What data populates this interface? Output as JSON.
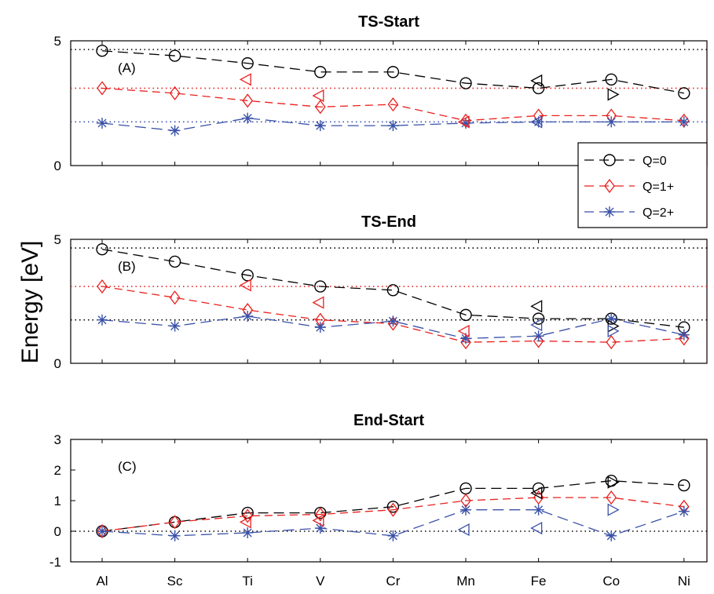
{
  "chart_data": {
    "type": "line",
    "ylabel": "Energy [eV]",
    "categories": [
      "Al",
      "Sc",
      "Ti",
      "V",
      "Cr",
      "Mn",
      "Fe",
      "Co",
      "Ni"
    ],
    "legend": {
      "placement": "right, between panels A and B",
      "entries": [
        {
          "label": "Q=0",
          "color": "#000000",
          "marker": "circle"
        },
        {
          "label": "Q=1+",
          "color": "#e8211f",
          "marker": "diamond"
        },
        {
          "label": "Q=2+",
          "color": "#3a52a8",
          "marker": "asterisk"
        }
      ]
    },
    "panels": [
      {
        "title": "TS-Start",
        "letter": "(A)",
        "ylim": [
          0,
          5
        ],
        "yticks": [
          "0",
          "5"
        ],
        "reference_lines": [
          {
            "y": 4.65,
            "color": "#000000"
          },
          {
            "y": 3.1,
            "color": "#e8211f"
          },
          {
            "y": 1.75,
            "color": "#3a52a8"
          }
        ],
        "series": [
          {
            "name": "Q=0",
            "color": "#000000",
            "marker": "circle",
            "values": [
              4.6,
              4.4,
              4.1,
              3.75,
              3.75,
              3.3,
              3.1,
              3.45,
              2.9
            ]
          },
          {
            "name": "Q=1+",
            "color": "#e8211f",
            "marker": "diamond",
            "values": [
              3.1,
              2.9,
              2.6,
              2.35,
              2.45,
              1.8,
              2.0,
              2.0,
              1.8
            ]
          },
          {
            "name": "Q=2+",
            "color": "#3a52a8",
            "marker": "asterisk",
            "values": [
              1.7,
              1.4,
              1.9,
              1.6,
              1.6,
              1.7,
              1.75,
              1.75,
              1.75
            ]
          }
        ],
        "extra_markers": [
          {
            "category": "Ti",
            "value": 3.45,
            "shape": "triangle-left",
            "color": "#e8211f"
          },
          {
            "category": "V",
            "value": 2.8,
            "shape": "triangle-left",
            "color": "#e8211f"
          },
          {
            "category": "Mn",
            "value": 1.75,
            "shape": "triangle-left",
            "color": "#e8211f"
          },
          {
            "category": "Fe",
            "value": 3.4,
            "shape": "triangle-left",
            "color": "#000000"
          },
          {
            "category": "Fe",
            "value": 1.75,
            "shape": "triangle-left",
            "color": "#3a52a8"
          },
          {
            "category": "Co",
            "value": 2.85,
            "shape": "triangle-right",
            "color": "#000000"
          }
        ]
      },
      {
        "title": "TS-End",
        "letter": "(B)",
        "ylim": [
          0,
          5
        ],
        "yticks": [
          "0",
          "5"
        ],
        "reference_lines": [
          {
            "y": 4.65,
            "color": "#000000"
          },
          {
            "y": 3.1,
            "color": "#e8211f"
          },
          {
            "y": 1.75,
            "color": "#000000"
          }
        ],
        "series": [
          {
            "name": "Q=0",
            "color": "#000000",
            "marker": "circle",
            "values": [
              4.6,
              4.1,
              3.55,
              3.1,
              2.95,
              1.95,
              1.8,
              1.8,
              1.45
            ]
          },
          {
            "name": "Q=1+",
            "color": "#e8211f",
            "marker": "diamond",
            "values": [
              3.1,
              2.65,
              2.15,
              1.75,
              1.6,
              0.85,
              0.9,
              0.85,
              1.0
            ]
          },
          {
            "name": "Q=2+",
            "color": "#3a52a8",
            "marker": "asterisk",
            "values": [
              1.75,
              1.5,
              1.9,
              1.45,
              1.7,
              1.0,
              1.1,
              1.8,
              1.15
            ]
          }
        ],
        "extra_markers": [
          {
            "category": "Ti",
            "value": 3.15,
            "shape": "triangle-left",
            "color": "#e8211f"
          },
          {
            "category": "V",
            "value": 2.45,
            "shape": "triangle-left",
            "color": "#e8211f"
          },
          {
            "category": "Mn",
            "value": 1.3,
            "shape": "triangle-left",
            "color": "#e8211f"
          },
          {
            "category": "Fe",
            "value": 2.3,
            "shape": "triangle-left",
            "color": "#000000"
          },
          {
            "category": "Fe",
            "value": 1.55,
            "shape": "triangle-left",
            "color": "#3a52a8"
          },
          {
            "category": "Co",
            "value": 1.5,
            "shape": "triangle-right",
            "color": "#000000"
          },
          {
            "category": "Co",
            "value": 1.3,
            "shape": "triangle-right",
            "color": "#3a52a8"
          }
        ]
      },
      {
        "title": "End-Start",
        "letter": "(C)",
        "ylim": [
          -1,
          3
        ],
        "yticks": [
          "-1",
          "0",
          "1",
          "2",
          "3"
        ],
        "reference_lines": [
          {
            "y": 0,
            "color": "#000000"
          }
        ],
        "series": [
          {
            "name": "Q=0",
            "color": "#000000",
            "marker": "circle",
            "values": [
              0,
              0.3,
              0.6,
              0.6,
              0.8,
              1.4,
              1.4,
              1.65,
              1.5
            ]
          },
          {
            "name": "Q=1+",
            "color": "#e8211f",
            "marker": "diamond",
            "values": [
              0,
              0.3,
              0.5,
              0.55,
              0.7,
              1.0,
              1.1,
              1.1,
              0.8
            ]
          },
          {
            "name": "Q=2+",
            "color": "#3a52a8",
            "marker": "asterisk",
            "values": [
              0,
              -0.15,
              -0.05,
              0.1,
              -0.15,
              0.7,
              0.7,
              -0.15,
              0.65
            ]
          }
        ],
        "extra_markers": [
          {
            "category": "Ti",
            "value": 0.3,
            "shape": "triangle-left",
            "color": "#e8211f"
          },
          {
            "category": "V",
            "value": 0.35,
            "shape": "triangle-left",
            "color": "#e8211f"
          },
          {
            "category": "Mn",
            "value": 0.05,
            "shape": "triangle-left",
            "color": "#3a52a8"
          },
          {
            "category": "Fe",
            "value": 1.25,
            "shape": "triangle-left",
            "color": "#000000"
          },
          {
            "category": "Fe",
            "value": 0.1,
            "shape": "triangle-left",
            "color": "#3a52a8"
          },
          {
            "category": "Co",
            "value": 1.6,
            "shape": "triangle-right",
            "color": "#000000"
          },
          {
            "category": "Co",
            "value": 0.7,
            "shape": "triangle-right",
            "color": "#3a52a8"
          }
        ]
      }
    ]
  }
}
